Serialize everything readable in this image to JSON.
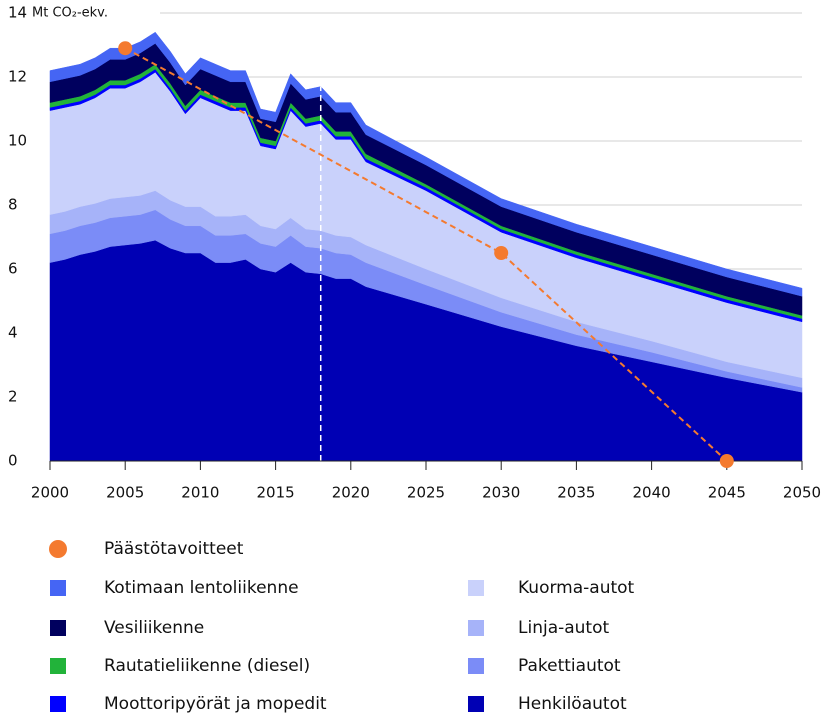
{
  "chart_data": {
    "type": "stacked_area",
    "ylabel": "Mt CO₂-ekv.",
    "x": [
      2000,
      2001,
      2002,
      2003,
      2004,
      2005,
      2006,
      2007,
      2008,
      2009,
      2010,
      2011,
      2012,
      2013,
      2014,
      2015,
      2016,
      2017,
      2018,
      2019,
      2020,
      2021,
      2025,
      2030,
      2035,
      2040,
      2045,
      2050
    ],
    "series": [
      {
        "name": "Henkilöautot",
        "color": "#0000b4",
        "values": [
          6.2,
          6.3,
          6.45,
          6.55,
          6.7,
          6.75,
          6.8,
          6.9,
          6.65,
          6.5,
          6.5,
          6.2,
          6.2,
          6.3,
          6.0,
          5.9,
          6.2,
          5.9,
          5.85,
          5.7,
          5.7,
          5.45,
          4.9,
          4.2,
          3.6,
          3.1,
          2.6,
          2.15
        ]
      },
      {
        "name": "Pakettiautot",
        "color": "#7b8cf7",
        "values": [
          0.9,
          0.9,
          0.9,
          0.9,
          0.9,
          0.9,
          0.9,
          0.95,
          0.9,
          0.85,
          0.85,
          0.85,
          0.85,
          0.8,
          0.8,
          0.8,
          0.85,
          0.8,
          0.8,
          0.8,
          0.75,
          0.75,
          0.6,
          0.45,
          0.35,
          0.3,
          0.2,
          0.15
        ]
      },
      {
        "name": "Linja-autot",
        "color": "#a6b3f9",
        "values": [
          0.6,
          0.6,
          0.6,
          0.6,
          0.6,
          0.6,
          0.6,
          0.6,
          0.6,
          0.6,
          0.6,
          0.6,
          0.6,
          0.6,
          0.55,
          0.55,
          0.55,
          0.55,
          0.55,
          0.55,
          0.55,
          0.55,
          0.5,
          0.45,
          0.4,
          0.35,
          0.3,
          0.3
        ]
      },
      {
        "name": "Kuorma-autot",
        "color": "#c9d1fb",
        "values": [
          3.25,
          3.25,
          3.2,
          3.3,
          3.45,
          3.4,
          3.55,
          3.7,
          3.4,
          2.9,
          3.4,
          3.5,
          3.3,
          3.25,
          2.5,
          2.5,
          3.35,
          3.2,
          3.35,
          3.0,
          3.05,
          2.6,
          2.45,
          2.05,
          2.0,
          1.9,
          1.85,
          1.75
        ]
      },
      {
        "name": "Moottoripyörät ja mopedit",
        "color": "#0000ff",
        "values": [
          0.1,
          0.1,
          0.1,
          0.1,
          0.1,
          0.1,
          0.1,
          0.1,
          0.1,
          0.1,
          0.1,
          0.1,
          0.1,
          0.1,
          0.1,
          0.1,
          0.1,
          0.1,
          0.1,
          0.1,
          0.1,
          0.1,
          0.1,
          0.1,
          0.1,
          0.1,
          0.1,
          0.1
        ]
      },
      {
        "name": "Rautatieliikenne (diesel)",
        "color": "#22b33a",
        "values": [
          0.15,
          0.15,
          0.15,
          0.15,
          0.15,
          0.15,
          0.15,
          0.15,
          0.15,
          0.15,
          0.15,
          0.15,
          0.15,
          0.15,
          0.15,
          0.15,
          0.15,
          0.15,
          0.15,
          0.15,
          0.15,
          0.15,
          0.1,
          0.1,
          0.1,
          0.1,
          0.1,
          0.1
        ]
      },
      {
        "name": "Vesiliikenne",
        "color": "#00005e",
        "values": [
          0.65,
          0.65,
          0.65,
          0.65,
          0.65,
          0.65,
          0.65,
          0.65,
          0.65,
          0.65,
          0.65,
          0.65,
          0.65,
          0.65,
          0.6,
          0.6,
          0.6,
          0.6,
          0.6,
          0.6,
          0.6,
          0.6,
          0.6,
          0.6,
          0.6,
          0.6,
          0.6,
          0.6
        ]
      },
      {
        "name": "Kotimaan lentoliikenne",
        "color": "#4565f4",
        "values": [
          0.35,
          0.35,
          0.35,
          0.35,
          0.35,
          0.35,
          0.35,
          0.35,
          0.35,
          0.35,
          0.35,
          0.35,
          0.35,
          0.35,
          0.3,
          0.3,
          0.3,
          0.3,
          0.3,
          0.3,
          0.3,
          0.3,
          0.25,
          0.25,
          0.25,
          0.25,
          0.25,
          0.25
        ]
      }
    ],
    "targets": {
      "name": "Päästötavoitteet",
      "color": "#f47a2f",
      "x": [
        2005,
        2030,
        2045
      ],
      "values": [
        12.9,
        6.5,
        0
      ]
    },
    "history_end": 2018,
    "xlim": [
      2000,
      2050
    ],
    "xticks": [
      2000,
      2005,
      2010,
      2015,
      2020,
      2025,
      2030,
      2035,
      2040,
      2045,
      2050
    ],
    "ylim": [
      0,
      14
    ],
    "yticks": [
      0,
      2,
      4,
      6,
      8,
      10,
      12,
      14
    ],
    "grid": true
  }
}
